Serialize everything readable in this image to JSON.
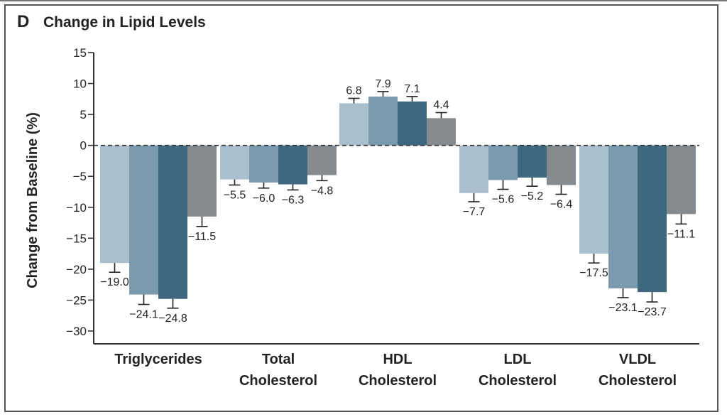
{
  "panel": {
    "letter": "D",
    "title": "Change in Lipid Levels"
  },
  "chart_data": {
    "type": "bar",
    "title": "Change in Lipid Levels",
    "ylabel": "Change from Baseline (%)",
    "xlabel": "",
    "ylim": [
      -30,
      15
    ],
    "yticks": [
      15,
      10,
      5,
      0,
      -5,
      -10,
      -15,
      -20,
      -25,
      -30
    ],
    "ytick_labels": [
      "15",
      "10",
      "5",
      "0",
      "−5",
      "−10",
      "−15",
      "−20",
      "−25",
      "−30"
    ],
    "grid": false,
    "zero_line": "dashed",
    "categories": [
      {
        "line1": "Triglycerides",
        "line2": ""
      },
      {
        "line1": "Total",
        "line2": "Cholesterol"
      },
      {
        "line1": "HDL",
        "line2": "Cholesterol"
      },
      {
        "line1": "LDL",
        "line2": "Cholesterol"
      },
      {
        "line1": "VLDL",
        "line2": "Cholesterol"
      }
    ],
    "series": [
      {
        "color": "#a9bfcc",
        "values": [
          -19.0,
          -5.5,
          6.8,
          -7.7,
          -17.5
        ],
        "labels": [
          "−19.0",
          "−5.5",
          "6.8",
          "−7.7",
          "−17.5"
        ]
      },
      {
        "color": "#7a9bae",
        "values": [
          -24.1,
          -6.0,
          7.9,
          -5.6,
          -23.1
        ],
        "labels": [
          "−24.1",
          "−6.0",
          "7.9",
          "−5.6",
          "−23.1"
        ]
      },
      {
        "color": "#3e6880",
        "values": [
          -24.8,
          -6.3,
          7.1,
          -5.2,
          -23.7
        ],
        "labels": [
          "−24.8",
          "−6.3",
          "7.1",
          "−5.2",
          "−23.7"
        ]
      },
      {
        "color": "#868b90",
        "values": [
          -11.5,
          -4.8,
          4.4,
          -6.4,
          -11.1
        ],
        "labels": [
          "−11.5",
          "−4.8",
          "4.4",
          "−6.4",
          "−11.1"
        ]
      }
    ],
    "errors": [
      [
        1.5,
        1.6,
        1.5,
        1.6
      ],
      [
        0.9,
        0.9,
        0.9,
        0.9
      ],
      [
        0.8,
        0.8,
        0.8,
        0.9
      ],
      [
        1.4,
        1.5,
        1.4,
        1.5
      ],
      [
        1.5,
        1.5,
        1.6,
        1.6
      ]
    ]
  }
}
